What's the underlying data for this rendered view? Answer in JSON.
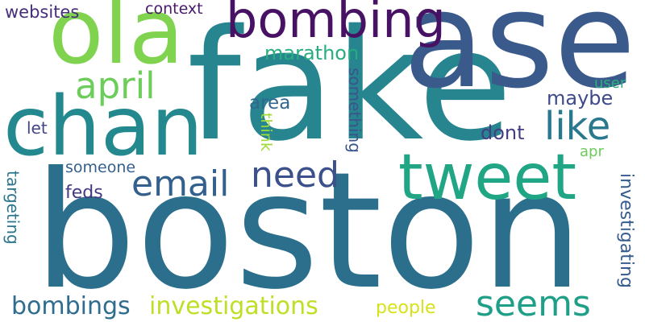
{
  "words": [
    {
      "text": "boston",
      "color": "#2b6f8c"
    },
    {
      "text": "fake",
      "color": "#26858e"
    },
    {
      "text": "ase",
      "color": "#3b5a8c"
    },
    {
      "text": "ola",
      "color": "#7fd34e"
    },
    {
      "text": "chan",
      "color": "#23898e"
    },
    {
      "text": "bombing",
      "color": "#471164"
    },
    {
      "text": "tweet",
      "color": "#21a685"
    },
    {
      "text": "april",
      "color": "#6ccd5a"
    },
    {
      "text": "like",
      "color": "#2a788e"
    },
    {
      "text": "email",
      "color": "#34608d"
    },
    {
      "text": "need",
      "color": "#3b518b"
    },
    {
      "text": "seems",
      "color": "#1f9f88"
    },
    {
      "text": "investigations",
      "color": "#bddf26"
    },
    {
      "text": "bombings",
      "color": "#2f6c8e"
    },
    {
      "text": "marathon",
      "color": "#27ad81"
    },
    {
      "text": "maybe",
      "color": "#3e4a89"
    },
    {
      "text": "user",
      "color": "#29af7f"
    },
    {
      "text": "area",
      "color": "#31668e"
    },
    {
      "text": "dont",
      "color": "#433e85"
    },
    {
      "text": "apr",
      "color": "#6ccd5a"
    },
    {
      "text": "someone",
      "color": "#35608d"
    },
    {
      "text": "feds",
      "color": "#443983"
    },
    {
      "text": "people",
      "color": "#d8e219"
    },
    {
      "text": "websites",
      "color": "#472d7b"
    },
    {
      "text": "context",
      "color": "#48186a"
    },
    {
      "text": "let",
      "color": "#414487"
    },
    {
      "text": "think",
      "color": "#9fda3a"
    },
    {
      "text": "something",
      "color": "#3a548c"
    },
    {
      "text": "targeting",
      "color": "#2b758e"
    },
    {
      "text": "investigating",
      "color": "#365c8d"
    }
  ]
}
